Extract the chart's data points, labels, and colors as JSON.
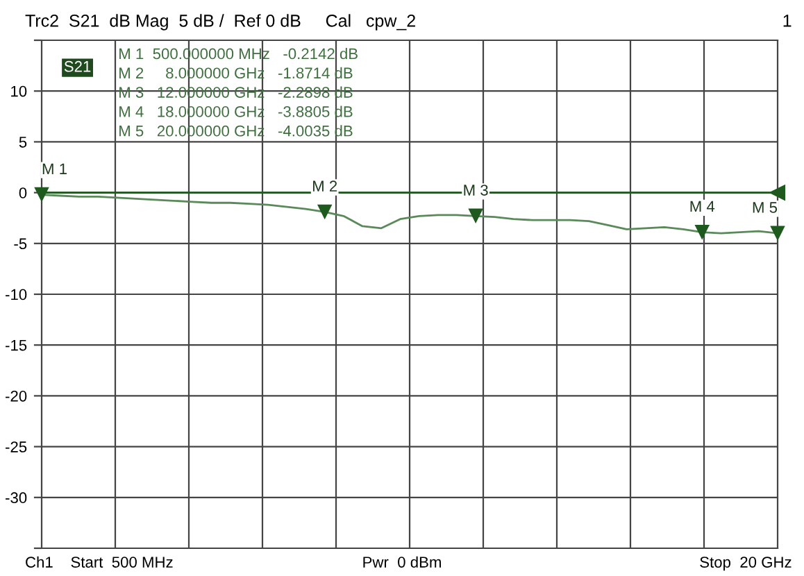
{
  "chart_data": {
    "type": "line",
    "title": "Trc2  S21  dB Mag  5 dB /  Ref 0 dB     Cal   cpw_2",
    "categories": [
      null,
      null,
      null,
      null,
      null,
      null,
      null,
      null,
      null,
      null,
      null,
      null,
      null,
      null,
      null,
      null,
      null,
      null,
      null,
      null,
      null,
      null,
      null,
      null,
      null,
      null,
      null,
      null,
      null,
      null,
      null,
      null,
      null,
      null,
      null,
      null,
      null,
      null,
      null,
      null
    ],
    "ylim": [
      -35,
      15
    ],
    "yticks": [
      {
        "value": 15,
        "label": null
      },
      10,
      5,
      0,
      -5,
      -10,
      -15,
      -20,
      -25,
      -30,
      {
        "value": -35,
        "label": null
      }
    ],
    "tick_labels": "y",
    "grid": true,
    "ref_lines": [
      {
        "axis": "y",
        "value": 0,
        "color": "#1e5a1e"
      }
    ],
    "series": [
      {
        "color": "#5a8a5a",
        "marker": "none",
        "values": [
          -0.2,
          -0.3,
          -0.4,
          -0.4,
          -0.5,
          -0.6,
          -0.7,
          -0.8,
          -0.9,
          -1.0,
          -1.0,
          -1.1,
          -1.2,
          -1.4,
          -1.6,
          -1.9,
          -2.3,
          -3.3,
          -3.5,
          -2.6,
          -2.3,
          -2.2,
          -2.2,
          -2.3,
          -2.4,
          -2.6,
          -2.7,
          -2.7,
          -2.7,
          -2.8,
          -3.2,
          -3.6,
          -3.5,
          -3.4,
          -3.6,
          -3.9,
          -4.0,
          -3.9,
          -3.8,
          -4.0
        ]
      },
      {
        "type": "scatter",
        "marker": "triangle",
        "color": "#1e5a1e",
        "values": [
          -0.2,
          null,
          null,
          null,
          null,
          null,
          null,
          null,
          null,
          null,
          null,
          null,
          null,
          null,
          null,
          -1.9,
          null,
          null,
          null,
          null,
          null,
          null,
          null,
          -2.3,
          null,
          null,
          null,
          null,
          null,
          null,
          null,
          null,
          null,
          null,
          null,
          -3.9,
          null,
          null,
          null,
          -4.0
        ]
      }
    ],
    "annotations": [
      "1",
      "Ch1    Start  500 MHz",
      "Pwr  0 dBm",
      "Stop  20 GHz",
      "M 1  500.000000 MHz   -0.2142 dB",
      "M 2     8.000000 GHz   -1.8714 dB",
      "M 3   12.000000 GHz   -2.2898 dB",
      "M 4   18.000000 GHz   -3.8805 dB",
      "M 5   20.000000 GHz   -4.0035 dB",
      "S21",
      "M 1",
      "M 2",
      "M 3",
      "M 4",
      "M 5"
    ]
  }
}
